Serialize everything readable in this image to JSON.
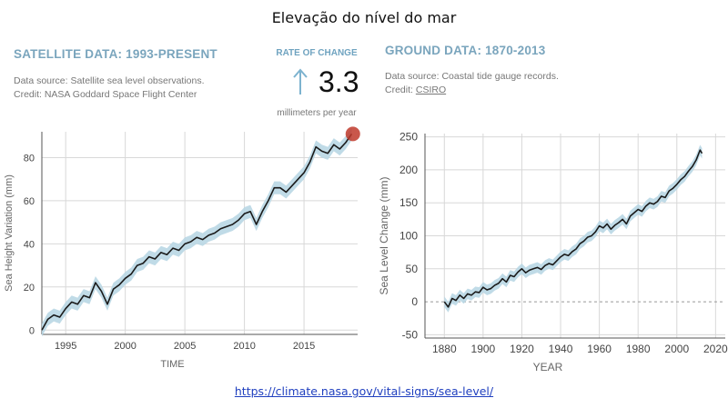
{
  "title": "Elevação do nível do mar",
  "satellite": {
    "heading": "SATELLITE DATA: 1993-PRESENT",
    "source": "Data source: Satellite sea level observations.",
    "credit": "Credit: NASA Goddard Space Flight Center"
  },
  "rate": {
    "label": "RATE OF CHANGE",
    "value": "3.3",
    "unit": "millimeters per year",
    "arrow_icon": "up-arrow-icon"
  },
  "ground": {
    "heading": "GROUND DATA: 1870-2013",
    "source": "Data source: Coastal tide gauge records.",
    "credit_prefix": "Credit:",
    "credit_link": "CSIRO"
  },
  "link": "https://climate.nasa.gov/vital-signs/sea-level/",
  "colors": {
    "line": "#1a1a1a",
    "band": "#b9d7e4",
    "dot": "#c0392b",
    "grid": "#d8d8d8",
    "axis": "#555555"
  },
  "chart_data": [
    {
      "type": "line",
      "title": "SATELLITE DATA: 1993-PRESENT",
      "xlabel": "TIME",
      "ylabel": "Sea Height Variation (mm)",
      "xlim": [
        1993,
        2019.5
      ],
      "ylim": [
        -2,
        92
      ],
      "xticks": [
        1995,
        2000,
        2005,
        2010,
        2015
      ],
      "yticks": [
        0,
        20,
        40,
        60,
        80
      ],
      "band_halfwidth": 3,
      "endpoint_marker": {
        "x": 2019.1,
        "y": 91
      },
      "series": [
        {
          "name": "Sea height variation",
          "x": [
            1993.0,
            1993.5,
            1994.0,
            1994.5,
            1995.0,
            1995.5,
            1996.0,
            1996.5,
            1997.0,
            1997.5,
            1998.0,
            1998.5,
            1999.0,
            1999.5,
            2000.0,
            2000.5,
            2001.0,
            2001.5,
            2002.0,
            2002.5,
            2003.0,
            2003.5,
            2004.0,
            2004.5,
            2005.0,
            2005.5,
            2006.0,
            2006.5,
            2007.0,
            2007.5,
            2008.0,
            2008.5,
            2009.0,
            2009.5,
            2010.0,
            2010.5,
            2011.0,
            2011.5,
            2012.0,
            2012.5,
            2013.0,
            2013.5,
            2014.0,
            2014.5,
            2015.0,
            2015.5,
            2016.0,
            2016.5,
            2017.0,
            2017.5,
            2018.0,
            2018.5,
            2019.0
          ],
          "values": [
            0,
            5,
            7,
            6,
            10,
            13,
            12,
            16,
            15,
            22,
            18,
            12,
            19,
            21,
            24,
            26,
            30,
            31,
            34,
            33,
            36,
            35,
            38,
            37,
            40,
            41,
            43,
            42,
            44,
            45,
            47,
            48,
            49,
            51,
            54,
            55,
            49,
            55,
            60,
            66,
            66,
            64,
            67,
            70,
            73,
            78,
            85,
            83,
            82,
            86,
            84,
            87,
            91
          ]
        }
      ]
    },
    {
      "type": "line",
      "title": "GROUND DATA: 1870-2013",
      "xlabel": "YEAR",
      "ylabel": "Sea Level Change (mm)",
      "xlim": [
        1870,
        2025
      ],
      "ylim": [
        -55,
        255
      ],
      "xticks": [
        1880,
        1900,
        1920,
        1940,
        1960,
        1980,
        2000,
        2020
      ],
      "yticks": [
        -50,
        0,
        50,
        100,
        150,
        200,
        250
      ],
      "band_halfwidth": 8,
      "series": [
        {
          "name": "Sea level change",
          "x": [
            1880,
            1882,
            1884,
            1886,
            1888,
            1890,
            1892,
            1894,
            1896,
            1898,
            1900,
            1902,
            1904,
            1906,
            1908,
            1910,
            1912,
            1914,
            1916,
            1918,
            1920,
            1922,
            1924,
            1926,
            1928,
            1930,
            1932,
            1934,
            1936,
            1938,
            1940,
            1942,
            1944,
            1946,
            1948,
            1950,
            1952,
            1954,
            1956,
            1958,
            1960,
            1962,
            1964,
            1966,
            1968,
            1970,
            1972,
            1974,
            1976,
            1978,
            1980,
            1982,
            1984,
            1986,
            1988,
            1990,
            1992,
            1994,
            1996,
            1998,
            2000,
            2002,
            2004,
            2006,
            2008,
            2010,
            2012,
            2013
          ],
          "values": [
            0,
            -8,
            5,
            2,
            10,
            5,
            12,
            10,
            15,
            14,
            22,
            18,
            20,
            25,
            28,
            35,
            30,
            40,
            38,
            45,
            50,
            44,
            48,
            50,
            52,
            49,
            55,
            58,
            56,
            62,
            68,
            72,
            70,
            76,
            80,
            88,
            92,
            98,
            100,
            106,
            115,
            112,
            118,
            110,
            116,
            120,
            125,
            118,
            130,
            135,
            140,
            137,
            145,
            150,
            148,
            152,
            160,
            158,
            168,
            172,
            178,
            185,
            190,
            198,
            205,
            215,
            230,
            225
          ]
        }
      ]
    }
  ]
}
